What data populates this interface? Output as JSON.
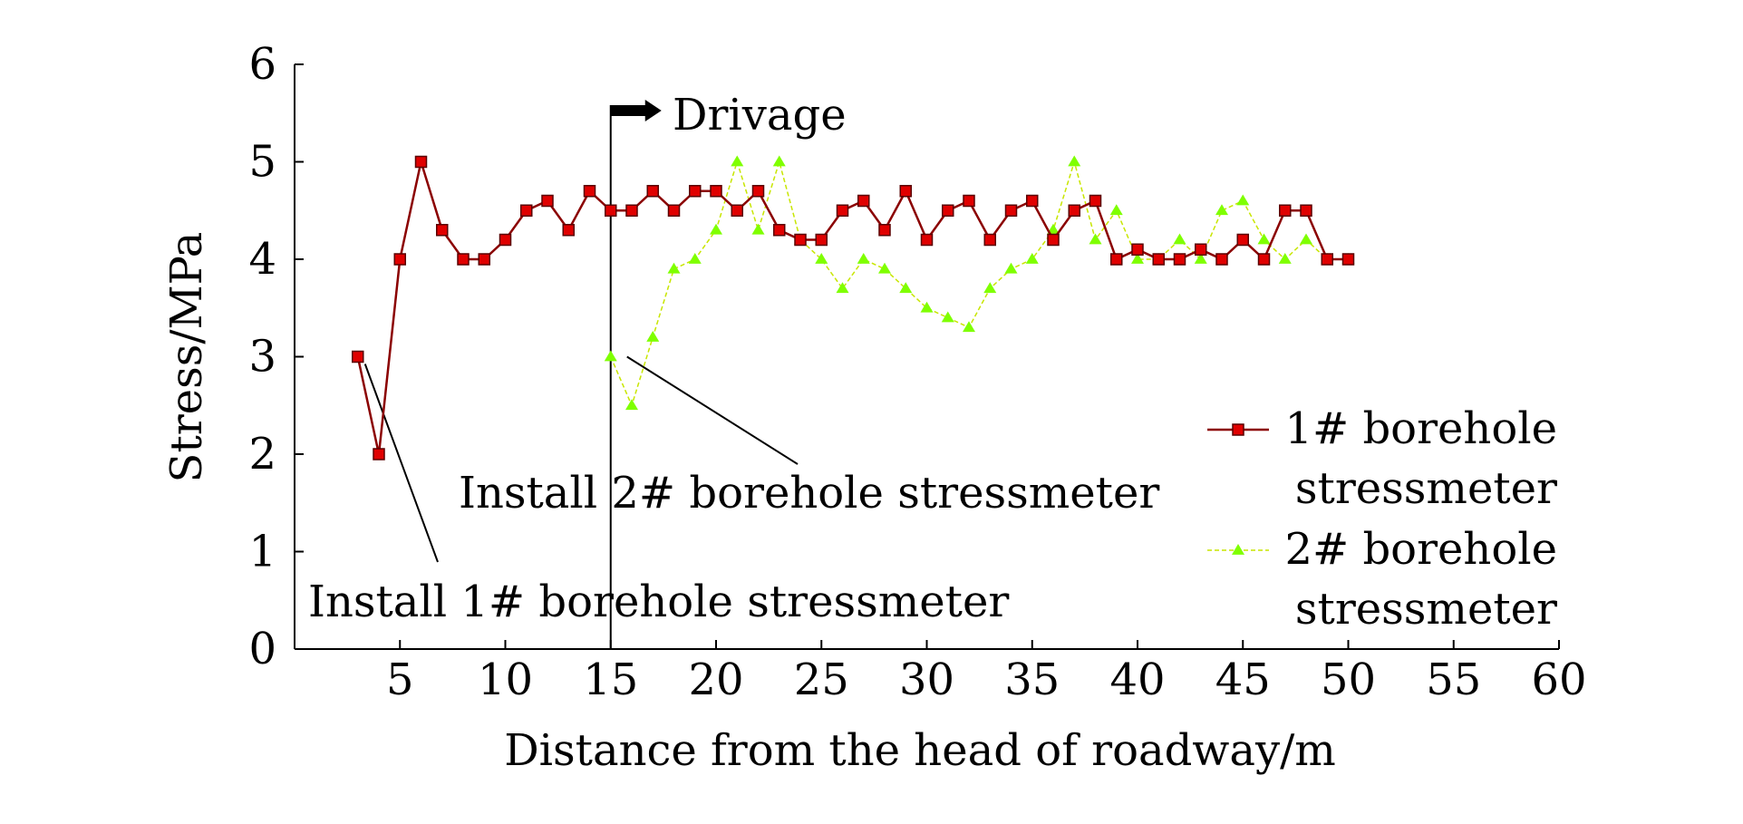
{
  "chart_data": {
    "type": "line",
    "xlabel": "Distance from the head of roadway/m",
    "ylabel": "Stress/MPa",
    "xlim": [
      0,
      60
    ],
    "ylim": [
      0,
      6
    ],
    "x_ticks": [
      5,
      10,
      15,
      20,
      25,
      30,
      35,
      40,
      45,
      50,
      55,
      60
    ],
    "y_ticks": [
      0,
      1,
      2,
      3,
      4,
      5,
      6
    ],
    "grid": false,
    "legend_position": "right",
    "series": [
      {
        "name": "1# borehole stressmeter",
        "marker": "square",
        "line_color": "#8b0000",
        "marker_color": "#e00000",
        "x": [
          3,
          4,
          5,
          6,
          7,
          8,
          9,
          10,
          11,
          12,
          13,
          14,
          15,
          16,
          17,
          18,
          19,
          20,
          21,
          22,
          23,
          24,
          25,
          26,
          27,
          28,
          29,
          30,
          31,
          32,
          33,
          34,
          35,
          36,
          37,
          38,
          39,
          40,
          41,
          42,
          43,
          44,
          45,
          46,
          47,
          48,
          49,
          50
        ],
        "y": [
          3,
          2,
          4,
          5,
          4.3,
          4,
          4,
          4.2,
          4.5,
          4.6,
          4.3,
          4.7,
          4.5,
          4.5,
          4.7,
          4.5,
          4.7,
          4.7,
          4.5,
          4.7,
          4.3,
          4.2,
          4.2,
          4.5,
          4.6,
          4.3,
          4.7,
          4.2,
          4.5,
          4.6,
          4.2,
          4.5,
          4.6,
          4.2,
          4.5,
          4.6,
          4,
          4.1,
          4,
          4,
          4.1,
          4,
          4.2,
          4,
          4.5,
          4.5,
          4,
          4
        ]
      },
      {
        "name": "2# borehole stressmeter",
        "marker": "triangle",
        "line_color": "#c8e600",
        "marker_color": "#7fff00",
        "x": [
          15,
          16,
          17,
          18,
          19,
          20,
          21,
          22,
          23,
          24,
          25,
          26,
          27,
          28,
          29,
          30,
          31,
          32,
          33,
          34,
          35,
          36,
          37,
          38,
          39,
          40,
          41,
          42,
          43,
          44,
          45,
          46,
          47,
          48,
          49,
          50
        ],
        "y": [
          3,
          2.5,
          3.2,
          3.9,
          4,
          4.3,
          5,
          4.3,
          5,
          4.2,
          4,
          3.7,
          4,
          3.9,
          3.7,
          3.5,
          3.4,
          3.3,
          3.7,
          3.9,
          4,
          4.3,
          5,
          4.2,
          4.5,
          4,
          4,
          4.2,
          4,
          4.5,
          4.6,
          4.2,
          4,
          4.2,
          4,
          4
        ]
      }
    ],
    "annotations": {
      "drivage_label": "Drivage",
      "drivage_x": 15,
      "install1_label": "Install 1# borehole stressmeter",
      "install1_point": [
        3,
        3
      ],
      "install2_label": "Install 2# borehole stressmeter",
      "install2_point": [
        15,
        3
      ]
    },
    "legend": {
      "s1_line1": "1# borehole",
      "s1_line2": "stressmeter",
      "s2_line1": "2# borehole",
      "s2_line2": "stressmeter"
    }
  }
}
